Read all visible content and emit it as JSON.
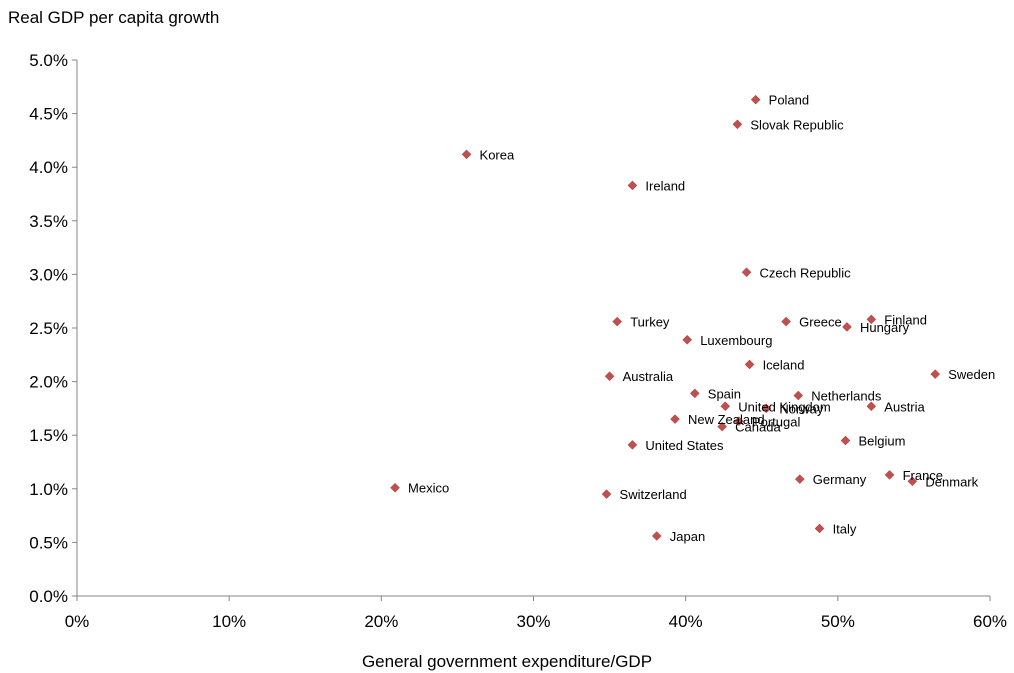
{
  "chart_data": {
    "type": "scatter",
    "title": "",
    "ylabel": "Real GDP per capita growth",
    "xlabel": "General government expenditure/GDP",
    "xlim": [
      0,
      0.6
    ],
    "ylim": [
      0,
      0.05
    ],
    "x_ticks": [
      "0%",
      "10%",
      "20%",
      "30%",
      "40%",
      "50%",
      "60%"
    ],
    "y_ticks": [
      "0.0%",
      "0.5%",
      "1.0%",
      "1.5%",
      "2.0%",
      "2.5%",
      "3.0%",
      "3.5%",
      "4.0%",
      "4.5%",
      "5.0%"
    ],
    "grid": false,
    "marker_color": "#C0504D",
    "points": [
      {
        "label": "Poland",
        "x": 0.446,
        "y": 0.0463
      },
      {
        "label": "Slovak Republic",
        "x": 0.434,
        "y": 0.044
      },
      {
        "label": "Korea",
        "x": 0.256,
        "y": 0.0412
      },
      {
        "label": "Ireland",
        "x": 0.365,
        "y": 0.0383
      },
      {
        "label": "Czech Republic",
        "x": 0.44,
        "y": 0.0302
      },
      {
        "label": "Finland",
        "x": 0.522,
        "y": 0.0258
      },
      {
        "label": "Turkey",
        "x": 0.355,
        "y": 0.0256
      },
      {
        "label": "Greece",
        "x": 0.466,
        "y": 0.0256
      },
      {
        "label": "Hungary",
        "x": 0.506,
        "y": 0.0251
      },
      {
        "label": "Luxembourg",
        "x": 0.401,
        "y": 0.0239
      },
      {
        "label": "Iceland",
        "x": 0.442,
        "y": 0.0216
      },
      {
        "label": "Sweden",
        "x": 0.564,
        "y": 0.0207
      },
      {
        "label": "Australia",
        "x": 0.35,
        "y": 0.0205
      },
      {
        "label": "Spain",
        "x": 0.406,
        "y": 0.0189
      },
      {
        "label": "Netherlands",
        "x": 0.474,
        "y": 0.0187
      },
      {
        "label": "United Kingdom",
        "x": 0.426,
        "y": 0.0177
      },
      {
        "label": "Austria",
        "x": 0.522,
        "y": 0.0177
      },
      {
        "label": "Norway",
        "x": 0.453,
        "y": 0.0175
      },
      {
        "label": "New Zealand",
        "x": 0.393,
        "y": 0.0165
      },
      {
        "label": "Portugal",
        "x": 0.435,
        "y": 0.0163
      },
      {
        "label": "Canada",
        "x": 0.424,
        "y": 0.0158
      },
      {
        "label": "Belgium",
        "x": 0.505,
        "y": 0.0145
      },
      {
        "label": "United States",
        "x": 0.365,
        "y": 0.0141
      },
      {
        "label": "France",
        "x": 0.534,
        "y": 0.0113
      },
      {
        "label": "Germany",
        "x": 0.475,
        "y": 0.0109
      },
      {
        "label": "Denmark",
        "x": 0.549,
        "y": 0.0107
      },
      {
        "label": "Mexico",
        "x": 0.209,
        "y": 0.0101
      },
      {
        "label": "Switzerland",
        "x": 0.348,
        "y": 0.0095
      },
      {
        "label": "Italy",
        "x": 0.488,
        "y": 0.0063
      },
      {
        "label": "Japan",
        "x": 0.381,
        "y": 0.0056
      }
    ]
  }
}
